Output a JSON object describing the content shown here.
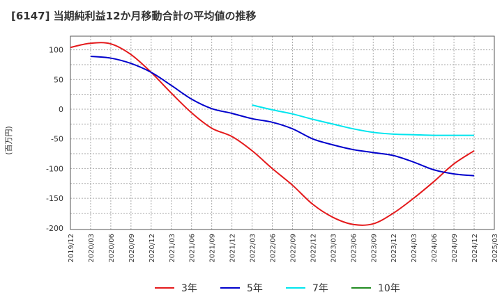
{
  "chart_data": {
    "type": "line",
    "title": "[6147]  当期純利益12か月移動合計の平均値の推移",
    "xlabel": "",
    "ylabel": "(百万円)",
    "ylim": [
      -200,
      120
    ],
    "yticks": [
      100,
      50,
      0,
      -50,
      -100,
      -150,
      -200
    ],
    "xticks": [
      "2019/12",
      "2020/03",
      "2020/06",
      "2020/09",
      "2020/12",
      "2021/03",
      "2021/06",
      "2021/09",
      "2021/12",
      "2022/03",
      "2022/06",
      "2022/09",
      "2022/12",
      "2023/03",
      "2023/06",
      "2023/09",
      "2023/12",
      "2024/03",
      "2024/06",
      "2024/09",
      "2024/12",
      "2025/03"
    ],
    "grid": true,
    "legend_position": "bottom",
    "x": [
      "2019/12",
      "2020/03",
      "2020/06",
      "2020/09",
      "2020/12",
      "2021/03",
      "2021/06",
      "2021/09",
      "2021/12",
      "2022/03",
      "2022/06",
      "2022/09",
      "2022/12",
      "2023/03",
      "2023/06",
      "2023/09",
      "2023/12",
      "2024/03",
      "2024/06",
      "2024/09",
      "2024/12"
    ],
    "series": [
      {
        "name": "3年",
        "color": "#e41a1c",
        "values": [
          104,
          111,
          110,
          92,
          62,
          27,
          -6,
          -32,
          -46,
          -70,
          -100,
          -128,
          -160,
          -182,
          -194,
          -193,
          -175,
          -150,
          -122,
          -92,
          -70
        ]
      },
      {
        "name": "5年",
        "color": "#0000cc",
        "values": [
          null,
          89,
          86,
          77,
          62,
          40,
          17,
          1,
          -7,
          -16,
          -22,
          -33,
          -50,
          -60,
          -68,
          -73,
          -78,
          -89,
          -102,
          -109,
          -112
        ]
      },
      {
        "name": "7年",
        "color": "#00e5ee",
        "values": [
          null,
          null,
          null,
          null,
          null,
          null,
          null,
          null,
          null,
          7,
          -1,
          -8,
          -17,
          -25,
          -33,
          -39,
          -42,
          -43,
          -44,
          -44,
          -44
        ]
      },
      {
        "name": "10年",
        "color": "#228b22",
        "values": [
          null,
          null,
          null,
          null,
          null,
          null,
          null,
          null,
          null,
          null,
          null,
          null,
          null,
          null,
          null,
          null,
          null,
          null,
          null,
          null,
          null
        ]
      }
    ]
  }
}
